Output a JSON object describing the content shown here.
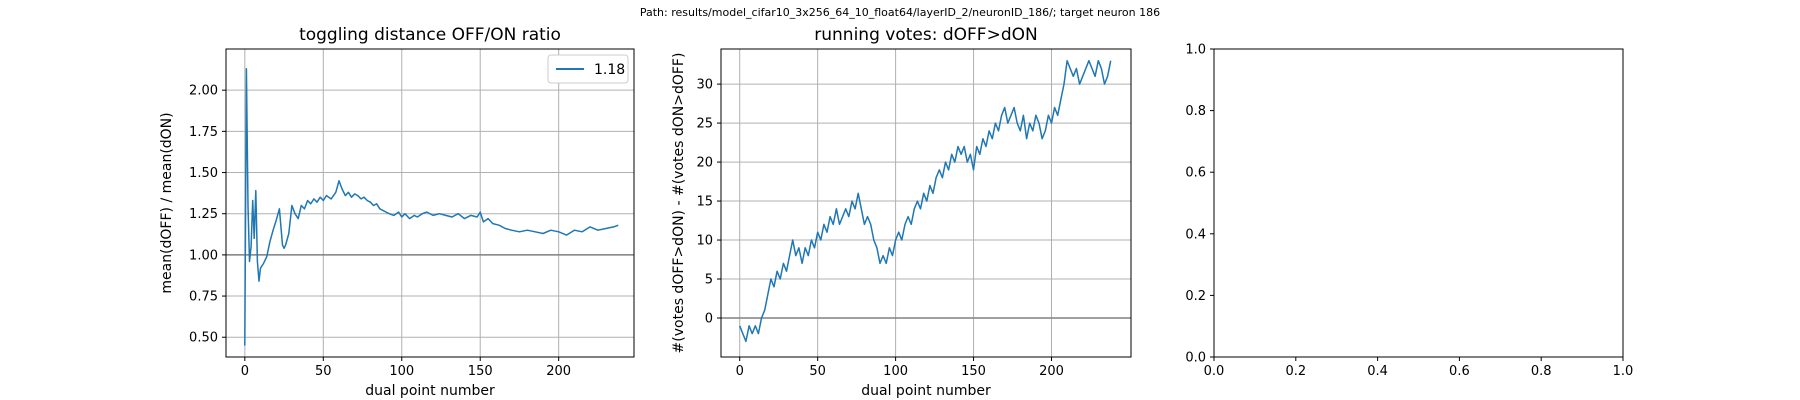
{
  "figure": {
    "suptitle": "Path: results/model_cifar10_3x256_64_10_float64/layerID_2/neuronID_186/; target neuron 186"
  },
  "colors": {
    "line": "#1f77b4",
    "refline": "#808080",
    "grid": "#b0b0b0"
  },
  "chart_data": [
    {
      "type": "line",
      "title": "toggling distance OFF/ON ratio",
      "xlabel": "dual point number",
      "ylabel": "mean(dOFF) / mean(dON)",
      "xlim": [
        -12,
        248
      ],
      "ylim": [
        0.38,
        2.25
      ],
      "xticks": [
        0,
        50,
        100,
        150,
        200
      ],
      "xtick_labels": [
        "0",
        "50",
        "100",
        "150",
        "200"
      ],
      "yticks": [
        0.5,
        0.75,
        1.0,
        1.25,
        1.5,
        1.75,
        2.0
      ],
      "ytick_labels": [
        "0.50",
        "0.75",
        "1.00",
        "1.25",
        "1.50",
        "1.75",
        "2.00"
      ],
      "grid": true,
      "legend": {
        "position": "top-right",
        "entries": [
          "1.18"
        ]
      },
      "hline": 1.0,
      "series": [
        {
          "name": "1.18",
          "x": [
            0,
            1,
            2,
            3,
            4,
            5,
            6,
            7,
            8,
            9,
            10,
            12,
            14,
            16,
            18,
            20,
            22,
            24,
            25,
            26,
            28,
            30,
            32,
            34,
            36,
            38,
            40,
            42,
            44,
            46,
            48,
            50,
            52,
            55,
            58,
            60,
            62,
            64,
            66,
            68,
            70,
            72,
            74,
            76,
            78,
            80,
            82,
            84,
            86,
            88,
            90,
            92,
            95,
            98,
            100,
            102,
            105,
            108,
            110,
            113,
            116,
            120,
            124,
            128,
            132,
            136,
            140,
            144,
            148,
            150,
            152,
            155,
            158,
            162,
            166,
            170,
            175,
            180,
            185,
            190,
            195,
            200,
            205,
            210,
            215,
            220,
            225,
            230,
            235,
            238
          ],
          "y": [
            0.45,
            2.13,
            1.3,
            0.96,
            1.05,
            1.33,
            1.1,
            1.39,
            0.96,
            0.84,
            0.92,
            0.95,
            0.99,
            1.08,
            1.15,
            1.21,
            1.28,
            1.06,
            1.04,
            1.06,
            1.13,
            1.3,
            1.25,
            1.22,
            1.3,
            1.28,
            1.33,
            1.31,
            1.34,
            1.32,
            1.35,
            1.33,
            1.36,
            1.34,
            1.38,
            1.45,
            1.4,
            1.36,
            1.38,
            1.35,
            1.37,
            1.36,
            1.34,
            1.35,
            1.33,
            1.32,
            1.3,
            1.31,
            1.28,
            1.27,
            1.26,
            1.25,
            1.24,
            1.26,
            1.23,
            1.25,
            1.22,
            1.24,
            1.23,
            1.25,
            1.26,
            1.24,
            1.25,
            1.24,
            1.23,
            1.25,
            1.22,
            1.24,
            1.23,
            1.26,
            1.2,
            1.22,
            1.19,
            1.18,
            1.16,
            1.15,
            1.14,
            1.15,
            1.14,
            1.13,
            1.15,
            1.14,
            1.12,
            1.15,
            1.14,
            1.17,
            1.15,
            1.16,
            1.17,
            1.18
          ]
        }
      ]
    },
    {
      "type": "line",
      "title": "running votes: dOFF>dON",
      "xlabel": "dual point number",
      "ylabel": "#(votes dOFF>dON) - #(votes dON>dOFF)",
      "xlim": [
        -12,
        251
      ],
      "ylim": [
        -5,
        34.5
      ],
      "xticks": [
        0,
        50,
        100,
        150,
        200
      ],
      "xtick_labels": [
        "0",
        "50",
        "100",
        "150",
        "200"
      ],
      "yticks": [
        0,
        5,
        10,
        15,
        20,
        25,
        30
      ],
      "ytick_labels": [
        "0",
        "5",
        "10",
        "15",
        "20",
        "25",
        "30"
      ],
      "grid": true,
      "hline": 0,
      "series": [
        {
          "name": "",
          "x": [
            0,
            2,
            4,
            6,
            8,
            10,
            12,
            14,
            16,
            18,
            20,
            22,
            24,
            26,
            28,
            30,
            32,
            34,
            36,
            38,
            40,
            42,
            44,
            46,
            48,
            50,
            52,
            54,
            56,
            58,
            60,
            62,
            64,
            66,
            68,
            70,
            72,
            74,
            76,
            78,
            80,
            82,
            84,
            86,
            88,
            90,
            92,
            94,
            96,
            98,
            100,
            102,
            104,
            106,
            108,
            110,
            112,
            114,
            116,
            118,
            120,
            122,
            124,
            126,
            128,
            130,
            132,
            134,
            136,
            138,
            140,
            142,
            144,
            146,
            148,
            150,
            152,
            154,
            156,
            158,
            160,
            162,
            164,
            166,
            168,
            170,
            172,
            174,
            176,
            178,
            180,
            182,
            184,
            186,
            188,
            190,
            192,
            194,
            196,
            198,
            200,
            202,
            204,
            206,
            208,
            210,
            212,
            214,
            216,
            218,
            220,
            222,
            224,
            226,
            228,
            230,
            232,
            234,
            236,
            238
          ],
          "y": [
            -1,
            -2,
            -3,
            -1,
            -2,
            -1,
            -2,
            0,
            1,
            3,
            5,
            4,
            6,
            5,
            7,
            6,
            8,
            10,
            8,
            9,
            7,
            9,
            8,
            10,
            9,
            11,
            10,
            12,
            11,
            13,
            12,
            14,
            12,
            13,
            14,
            13,
            15,
            14,
            16,
            14,
            12,
            13,
            12,
            10,
            9,
            7,
            8,
            7,
            9,
            8,
            10,
            11,
            10,
            12,
            13,
            12,
            14,
            15,
            14,
            16,
            15,
            17,
            16,
            18,
            19,
            18,
            20,
            19,
            21,
            20,
            22,
            21,
            22,
            20,
            21,
            19,
            22,
            21,
            23,
            22,
            24,
            23,
            25,
            24,
            26,
            27,
            25,
            26,
            27,
            25,
            24,
            26,
            23,
            25,
            24,
            26,
            25,
            23,
            24,
            26,
            25,
            27,
            26,
            28,
            30,
            33,
            32,
            31,
            32,
            30,
            31,
            32,
            33,
            32,
            31,
            33,
            32,
            30,
            31,
            33
          ]
        }
      ]
    },
    {
      "type": "line",
      "title": "",
      "xlabel": "",
      "ylabel": "",
      "xlim": [
        0,
        1
      ],
      "ylim": [
        0,
        1
      ],
      "xticks": [
        0.0,
        0.2,
        0.4,
        0.6,
        0.8,
        1.0
      ],
      "xtick_labels": [
        "0.0",
        "0.2",
        "0.4",
        "0.6",
        "0.8",
        "1.0"
      ],
      "yticks": [
        0.0,
        0.2,
        0.4,
        0.6,
        0.8,
        1.0
      ],
      "ytick_labels": [
        "0.0",
        "0.2",
        "0.4",
        "0.6",
        "0.8",
        "1.0"
      ],
      "grid": false,
      "series": []
    }
  ]
}
